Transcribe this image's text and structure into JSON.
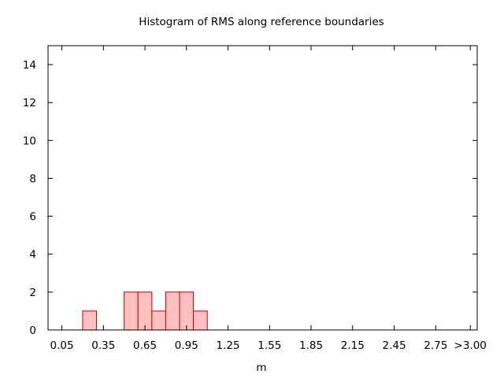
{
  "chart_data": {
    "type": "bar",
    "title": "Histogram of RMS along reference boundaries",
    "xlabel": "m",
    "ylabel": "",
    "bin_width": 0.1,
    "bins": [
      {
        "x": 0.25,
        "count": 1
      },
      {
        "x": 0.55,
        "count": 2
      },
      {
        "x": 0.65,
        "count": 2
      },
      {
        "x": 0.75,
        "count": 1
      },
      {
        "x": 0.85,
        "count": 2
      },
      {
        "x": 0.95,
        "count": 2
      },
      {
        "x": 1.05,
        "count": 1
      }
    ],
    "x_ticks": [
      {
        "value": 0.05,
        "label": "0.05"
      },
      {
        "value": 0.35,
        "label": "0.35"
      },
      {
        "value": 0.65,
        "label": "0.65"
      },
      {
        "value": 0.95,
        "label": "0.95"
      },
      {
        "value": 1.25,
        "label": "1.25"
      },
      {
        "value": 1.55,
        "label": "1.55"
      },
      {
        "value": 1.85,
        "label": "1.85"
      },
      {
        "value": 2.15,
        "label": "2.15"
      },
      {
        "value": 2.45,
        "label": "2.45"
      },
      {
        "value": 2.75,
        "label": "2.75"
      },
      {
        "value": 3.0,
        "label": ">3.00"
      }
    ],
    "y_ticks": [
      {
        "value": 0,
        "label": "0"
      },
      {
        "value": 2,
        "label": "2"
      },
      {
        "value": 4,
        "label": "4"
      },
      {
        "value": 6,
        "label": "6"
      },
      {
        "value": 8,
        "label": "8"
      },
      {
        "value": 10,
        "label": "10"
      },
      {
        "value": 12,
        "label": "12"
      },
      {
        "value": 14,
        "label": "14"
      }
    ],
    "xlim": [
      -0.05,
      3.05
    ],
    "ylim": [
      0,
      15
    ],
    "grid": false,
    "colors": {
      "bar_fill": "#ffc0c0",
      "bar_stroke": "#c00000",
      "axis": "#000000"
    }
  }
}
